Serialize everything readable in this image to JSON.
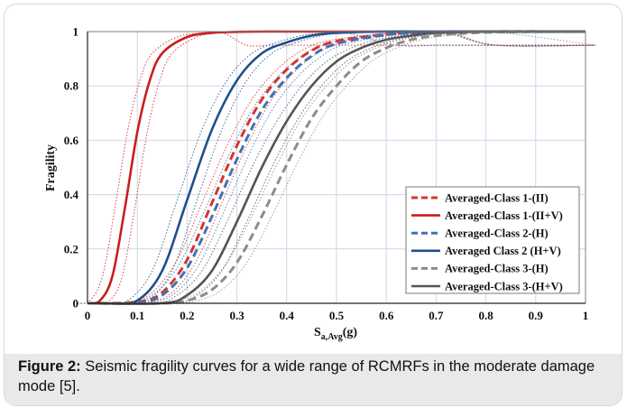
{
  "caption": {
    "label": "Figure 2:",
    "text": " Seismic fragility curves for a wide range of RCMRFs in the moderate damage mode [5]."
  },
  "chart_data": {
    "type": "line",
    "xlabel_main": "S",
    "xlabel_sub": "a,Avg",
    "xlabel_tail": "(g)",
    "ylabel": "Fragility",
    "xlim": [
      0,
      1
    ],
    "ylim": [
      0,
      1
    ],
    "xticks": [
      "0",
      "0.1",
      "0.2",
      "0.3",
      "0.4",
      "0.5",
      "0.6",
      "0.7",
      "0.8",
      "0.9",
      "1"
    ],
    "yticks": [
      "0",
      "0.2",
      "0.4",
      "0.6",
      "0.8",
      "1"
    ],
    "grid": true,
    "legend_position": "lower-right",
    "series": [
      {
        "name": "Averaged-Class 1-(II)",
        "color": "#d9342b",
        "dash": "dashed",
        "x": [
          0.0,
          0.1,
          0.15,
          0.2,
          0.25,
          0.3,
          0.35,
          0.4,
          0.45,
          0.5,
          0.6,
          0.7,
          0.8,
          1.0
        ],
        "y": [
          0.0,
          0.005,
          0.04,
          0.16,
          0.37,
          0.58,
          0.75,
          0.86,
          0.93,
          0.965,
          0.99,
          0.998,
          1.0,
          1.0
        ]
      },
      {
        "name": "Averaged-Class 1-(II+V)",
        "color": "#cc1d1d",
        "dash": "solid",
        "x": [
          0.0,
          0.025,
          0.05,
          0.075,
          0.1,
          0.125,
          0.15,
          0.2,
          0.25,
          0.3,
          0.35,
          0.4,
          0.5,
          1.0
        ],
        "y": [
          0.0,
          0.01,
          0.1,
          0.35,
          0.63,
          0.82,
          0.92,
          0.98,
          0.995,
          0.999,
          1.0,
          1.0,
          1.0,
          1.0
        ]
      },
      {
        "name": "Averaged-Class 2-(H)",
        "color": "#3e74b5",
        "dash": "dashed",
        "x": [
          0.0,
          0.1,
          0.15,
          0.2,
          0.25,
          0.3,
          0.35,
          0.4,
          0.45,
          0.5,
          0.6,
          0.7,
          0.8,
          1.0
        ],
        "y": [
          0.0,
          0.002,
          0.03,
          0.13,
          0.32,
          0.53,
          0.71,
          0.83,
          0.91,
          0.955,
          0.988,
          0.997,
          1.0,
          1.0
        ]
      },
      {
        "name": "Averaged Class 2 (H+V)",
        "color": "#1f4e8c",
        "dash": "solid",
        "x": [
          0.0,
          0.05,
          0.1,
          0.15,
          0.2,
          0.25,
          0.3,
          0.35,
          0.4,
          0.45,
          0.5,
          0.6,
          0.7,
          1.0
        ],
        "y": [
          0.0,
          0.0,
          0.01,
          0.12,
          0.38,
          0.64,
          0.82,
          0.92,
          0.96,
          0.985,
          0.995,
          1.0,
          1.0,
          1.0
        ]
      },
      {
        "name": "Averaged-Class 3-(H)",
        "color": "#8c8c8c",
        "dash": "dashed",
        "x": [
          0.0,
          0.15,
          0.2,
          0.25,
          0.3,
          0.35,
          0.4,
          0.45,
          0.5,
          0.55,
          0.6,
          0.65,
          0.7,
          0.8,
          1.0
        ],
        "y": [
          0.0,
          0.0,
          0.01,
          0.05,
          0.15,
          0.32,
          0.51,
          0.68,
          0.8,
          0.89,
          0.94,
          0.97,
          0.985,
          0.997,
          1.0
        ]
      },
      {
        "name": "Averaged-Class 3-(H+V)",
        "color": "#555555",
        "dash": "solid",
        "x": [
          0.0,
          0.15,
          0.2,
          0.25,
          0.3,
          0.35,
          0.4,
          0.45,
          0.5,
          0.55,
          0.6,
          0.65,
          0.7,
          0.8,
          1.0
        ],
        "y": [
          0.0,
          0.0,
          0.03,
          0.12,
          0.3,
          0.5,
          0.67,
          0.8,
          0.89,
          0.94,
          0.97,
          0.985,
          0.995,
          1.0,
          1.0
        ]
      }
    ]
  }
}
